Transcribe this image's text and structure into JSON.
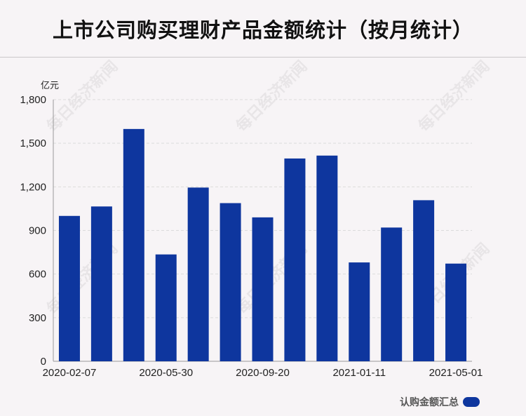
{
  "title": "上市公司购买理财产品金额统计（按月统计）",
  "watermark": "每日经济新闻",
  "chart_data": {
    "type": "bar",
    "ylabel": "亿元",
    "ylim": [
      0,
      1800
    ],
    "yticks": [
      0,
      300,
      600,
      900,
      1200,
      1500,
      1800
    ],
    "ytick_labels": [
      "0",
      "300",
      "600",
      "900",
      "1,200",
      "1,500",
      "1,800"
    ],
    "xtick_labels": [
      "2020-02-07",
      "2020-05-30",
      "2020-09-20",
      "2021-01-11",
      "2021-05-01"
    ],
    "xtick_positions": [
      0,
      3,
      6,
      9,
      12
    ],
    "values": [
      1000,
      1065,
      1598,
      735,
      1195,
      1088,
      990,
      1395,
      1415,
      680,
      920,
      1108,
      672
    ],
    "grid": true,
    "legend": {
      "position": "bottom-right",
      "label": "认购金额汇总"
    },
    "colors": {
      "bar": "#0e369e",
      "grid": "#dcdcdc",
      "axis": "#999999"
    }
  }
}
